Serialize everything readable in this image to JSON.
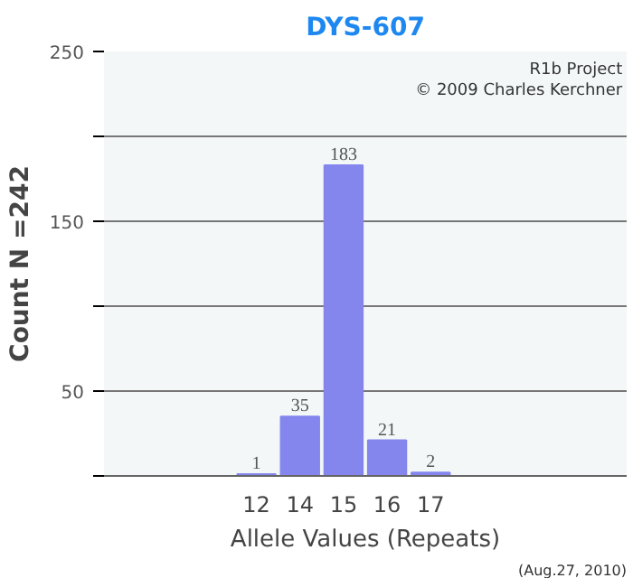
{
  "chart_data": {
    "type": "bar",
    "title": "DYS-607",
    "xlabel": "Allele Values (Repeats)",
    "ylabel": "Count N =242",
    "categories": [
      null,
      null,
      null,
      "12",
      "14",
      "15",
      "16",
      "17",
      null,
      null,
      null,
      null
    ],
    "values": [
      null,
      null,
      null,
      1,
      35,
      183,
      21,
      2,
      null,
      null,
      null,
      null
    ],
    "color": "#8585ee",
    "data_labels": true,
    "ylim": [
      0,
      250
    ],
    "yticks": [
      {
        "value": 0,
        "label": null
      },
      50,
      {
        "value": 100,
        "label": null
      },
      150,
      {
        "value": 200,
        "label": null
      },
      250
    ],
    "grid": "y",
    "annotations": [
      "R1b Project",
      "© 2009 Charles Kerchner",
      "(Aug.27, 2010)"
    ]
  }
}
